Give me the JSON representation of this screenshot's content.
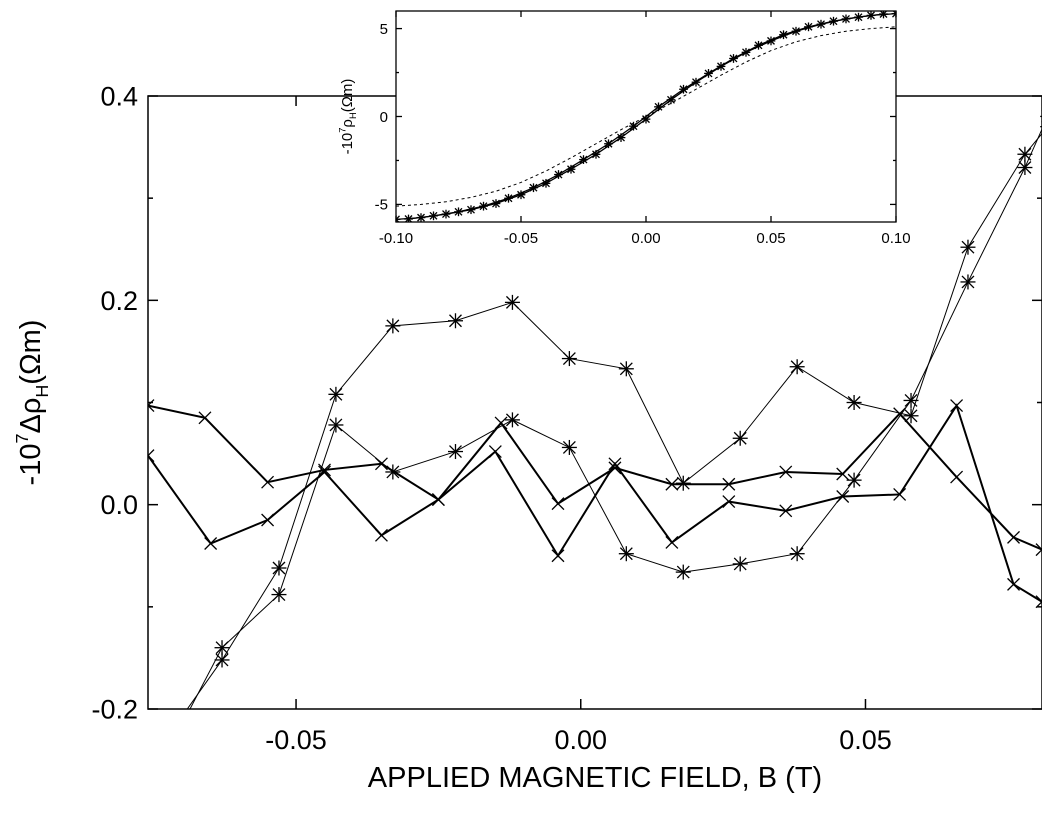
{
  "chart_data": [
    {
      "type": "line",
      "role": "main",
      "xlabel": "APPLIED MAGNETIC FIELD, B (T)",
      "ylabel": {
        "prefix": "-10",
        "exp": "7",
        "mid": "Δρ",
        "sub": "H",
        "suffix": "(Ωm)"
      },
      "xlim": [
        -0.076,
        0.081
      ],
      "ylim": [
        -0.2,
        0.4
      ],
      "x_ticks": [
        -0.05,
        0.0,
        0.05
      ],
      "x_tick_labels": [
        "-0.05",
        "0.00",
        "0.05"
      ],
      "y_ticks": [
        -0.2,
        0.0,
        0.2,
        0.4
      ],
      "y_tick_labels": [
        "-0.2",
        "0.0",
        "0.2",
        "0.4"
      ],
      "grid": false,
      "series": [
        {
          "marker": "star",
          "line_width": 1.0,
          "points": [
            [
              -0.078,
              -0.3
            ],
            [
              -0.063,
              -0.14
            ],
            [
              -0.053,
              -0.088
            ],
            [
              -0.043,
              0.078
            ],
            [
              -0.033,
              0.032
            ],
            [
              -0.022,
              0.052
            ],
            [
              -0.012,
              0.083
            ],
            [
              -0.002,
              0.056
            ],
            [
              0.008,
              -0.048
            ],
            [
              0.018,
              -0.066
            ],
            [
              0.028,
              -0.058
            ],
            [
              0.038,
              -0.048
            ],
            [
              0.048,
              0.024
            ],
            [
              0.058,
              0.102
            ],
            [
              0.068,
              0.218
            ],
            [
              0.078,
              0.33
            ],
            [
              0.082,
              0.38
            ]
          ]
        },
        {
          "marker": "star",
          "line_width": 1.0,
          "points": [
            [
              -0.078,
              -0.27
            ],
            [
              -0.063,
              -0.152
            ],
            [
              -0.053,
              -0.062
            ],
            [
              -0.043,
              0.108
            ],
            [
              -0.033,
              0.175
            ],
            [
              -0.022,
              0.18
            ],
            [
              -0.012,
              0.198
            ],
            [
              -0.002,
              0.143
            ],
            [
              0.008,
              0.133
            ],
            [
              0.018,
              0.021
            ],
            [
              0.028,
              0.065
            ],
            [
              0.038,
              0.135
            ],
            [
              0.048,
              0.1
            ],
            [
              0.058,
              0.087
            ],
            [
              0.068,
              0.252
            ],
            [
              0.078,
              0.343
            ],
            [
              0.082,
              0.37
            ]
          ]
        },
        {
          "marker": "x",
          "line_width": 2.0,
          "points": [
            [
              -0.076,
              0.048
            ],
            [
              -0.065,
              -0.038
            ],
            [
              -0.055,
              -0.015
            ],
            [
              -0.045,
              0.032
            ],
            [
              -0.035,
              -0.03
            ],
            [
              -0.025,
              0.005
            ],
            [
              -0.015,
              0.052
            ],
            [
              -0.004,
              -0.05
            ],
            [
              0.006,
              0.04
            ],
            [
              0.016,
              -0.037
            ],
            [
              0.026,
              0.003
            ],
            [
              0.036,
              -0.006
            ],
            [
              0.046,
              0.008
            ],
            [
              0.056,
              0.01
            ],
            [
              0.066,
              0.097
            ],
            [
              0.076,
              -0.078
            ],
            [
              0.081,
              -0.095
            ]
          ]
        },
        {
          "marker": "x",
          "line_width": 2.0,
          "points": [
            [
              -0.076,
              0.097
            ],
            [
              -0.066,
              0.085
            ],
            [
              -0.055,
              0.022
            ],
            [
              -0.045,
              0.034
            ],
            [
              -0.035,
              0.04
            ],
            [
              -0.025,
              0.005
            ],
            [
              -0.014,
              0.08
            ],
            [
              -0.004,
              0.001
            ],
            [
              0.006,
              0.036
            ],
            [
              0.016,
              0.02
            ],
            [
              0.026,
              0.02
            ],
            [
              0.036,
              0.032
            ],
            [
              0.046,
              0.03
            ],
            [
              0.056,
              0.089
            ],
            [
              0.066,
              0.027
            ],
            [
              0.076,
              -0.032
            ],
            [
              0.081,
              -0.044
            ]
          ]
        }
      ]
    },
    {
      "type": "line",
      "role": "inset",
      "ylabel": {
        "prefix": "-10",
        "exp": "7",
        "mid": "ρ",
        "sub": "H",
        "suffix": "(Ωm)"
      },
      "xlim": [
        -0.1,
        0.1
      ],
      "ylim": [
        -6.0,
        6.0
      ],
      "x_ticks": [
        -0.1,
        -0.05,
        0.0,
        0.05,
        0.1
      ],
      "x_tick_labels": [
        "-0.10",
        "-0.05",
        "0.00",
        "0.05",
        "0.10"
      ],
      "y_ticks": [
        -5,
        0,
        5
      ],
      "y_tick_labels": [
        "-5",
        "0",
        "5"
      ],
      "grid": false,
      "series": [
        {
          "marker": "star",
          "line_width": 1.3,
          "x": [
            -0.095,
            -0.085,
            -0.075,
            -0.065,
            -0.055,
            -0.045,
            -0.035,
            -0.025,
            -0.015,
            -0.005,
            0.005,
            0.015,
            0.025,
            0.035,
            0.045,
            0.055,
            0.065,
            0.075,
            0.085,
            0.095
          ],
          "y": [
            -5.83,
            -5.65,
            -5.42,
            -5.1,
            -4.65,
            -4.05,
            -3.3,
            -2.45,
            -1.55,
            -0.55,
            0.55,
            1.55,
            2.45,
            3.3,
            4.05,
            4.65,
            5.1,
            5.42,
            5.65,
            5.83
          ]
        },
        {
          "marker": "star",
          "line_width": 1.3,
          "x": [
            -0.1,
            -0.09,
            -0.08,
            -0.07,
            -0.06,
            -0.05,
            -0.04,
            -0.03,
            -0.02,
            -0.01,
            0.0,
            0.01,
            0.02,
            0.03,
            0.04,
            0.05,
            0.06,
            0.07,
            0.08,
            0.09,
            0.1
          ],
          "y": [
            -5.85,
            -5.75,
            -5.55,
            -5.3,
            -4.95,
            -4.45,
            -3.8,
            -3.0,
            -2.15,
            -1.2,
            -0.15,
            0.95,
            1.95,
            2.85,
            3.65,
            4.3,
            4.85,
            5.25,
            5.55,
            5.75,
            5.85
          ]
        },
        {
          "marker": "none",
          "line_width": 1.0,
          "dash": "3,3",
          "x": [
            -0.1,
            -0.09,
            -0.08,
            -0.07,
            -0.06,
            -0.05,
            -0.04,
            -0.03,
            -0.02,
            -0.01,
            0.0,
            0.01,
            0.02,
            0.03,
            0.04,
            0.05,
            0.06,
            0.07,
            0.08,
            0.09,
            0.1
          ],
          "y": [
            -5.1,
            -5.0,
            -4.85,
            -4.6,
            -4.25,
            -3.75,
            -3.1,
            -2.35,
            -1.55,
            -0.75,
            0.0,
            0.75,
            1.55,
            2.35,
            3.1,
            3.75,
            4.25,
            4.6,
            4.85,
            5.0,
            5.1
          ]
        }
      ]
    }
  ]
}
